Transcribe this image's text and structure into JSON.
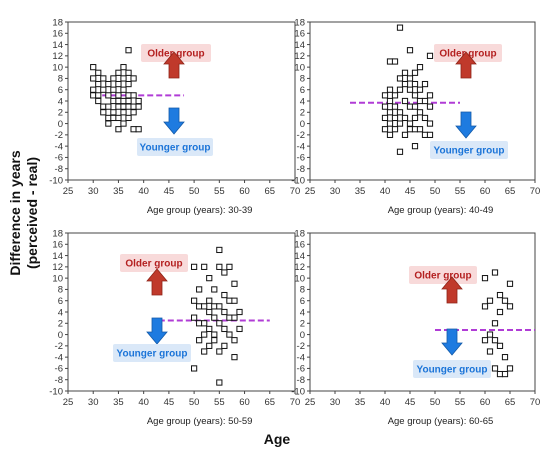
{
  "figure": {
    "ylabel_line1": "Difference in years",
    "ylabel_line2": "(perceived - real)",
    "xlabel": "Age"
  },
  "colors": {
    "older": "#c0392b",
    "younger": "#1e7be0",
    "mean_line": "#b03cd6",
    "older_label_bg": "#f7d6d6",
    "younger_label_bg": "#d6e6f7"
  },
  "chart_data": [
    {
      "type": "scatter",
      "title": "Age group (years): 30-39",
      "xlim": [
        25,
        70
      ],
      "ylim": [
        -10,
        18
      ],
      "xticks": [
        25,
        30,
        35,
        40,
        45,
        50,
        55,
        60,
        65,
        70
      ],
      "yticks": [
        -10,
        -8,
        -6,
        -4,
        -2,
        0,
        2,
        4,
        6,
        8,
        10,
        12,
        14,
        16,
        18
      ],
      "mean_line": {
        "y": 5.0,
        "x": [
          30,
          48
        ]
      },
      "older_label": "Older group",
      "younger_label": "Younger group",
      "points": [
        [
          30,
          10
        ],
        [
          30,
          8
        ],
        [
          30,
          6
        ],
        [
          30,
          5
        ],
        [
          31,
          9
        ],
        [
          31,
          7
        ],
        [
          31,
          5
        ],
        [
          31,
          4
        ],
        [
          32,
          8
        ],
        [
          32,
          6
        ],
        [
          32,
          3
        ],
        [
          32,
          2
        ],
        [
          33,
          7
        ],
        [
          33,
          5
        ],
        [
          33,
          3
        ],
        [
          33,
          1
        ],
        [
          33,
          0
        ],
        [
          34,
          8
        ],
        [
          34,
          6
        ],
        [
          34,
          4
        ],
        [
          34,
          2
        ],
        [
          34,
          1
        ],
        [
          35,
          9
        ],
        [
          35,
          7
        ],
        [
          35,
          5
        ],
        [
          35,
          4
        ],
        [
          35,
          3
        ],
        [
          35,
          1
        ],
        [
          35,
          -1
        ],
        [
          36,
          10
        ],
        [
          36,
          8
        ],
        [
          36,
          6
        ],
        [
          36,
          4
        ],
        [
          36,
          3
        ],
        [
          36,
          2
        ],
        [
          36,
          0
        ],
        [
          37,
          13
        ],
        [
          37,
          9
        ],
        [
          37,
          7
        ],
        [
          37,
          5
        ],
        [
          37,
          4
        ],
        [
          37,
          3
        ],
        [
          37,
          1
        ],
        [
          38,
          8
        ],
        [
          38,
          5
        ],
        [
          38,
          3
        ],
        [
          38,
          2
        ],
        [
          38,
          -1
        ],
        [
          39,
          4
        ],
        [
          39,
          3
        ],
        [
          39,
          -1
        ]
      ]
    },
    {
      "type": "scatter",
      "title": "Age group (years): 40-49",
      "xlim": [
        25,
        70
      ],
      "ylim": [
        -10,
        18
      ],
      "xticks": [
        25,
        30,
        35,
        40,
        45,
        50,
        55,
        60,
        65,
        70
      ],
      "yticks": [
        -10,
        -8,
        -6,
        -4,
        -2,
        0,
        2,
        4,
        6,
        8,
        10,
        12,
        14,
        16,
        18
      ],
      "mean_line": {
        "y": 3.7,
        "x": [
          33,
          55
        ]
      },
      "older_label": "Older group",
      "younger_label": "Younger group",
      "points": [
        [
          40,
          5
        ],
        [
          40,
          3
        ],
        [
          40,
          1
        ],
        [
          40,
          -1
        ],
        [
          41,
          11
        ],
        [
          41,
          6
        ],
        [
          41,
          4
        ],
        [
          41,
          2
        ],
        [
          41,
          0
        ],
        [
          41,
          -2
        ],
        [
          42,
          11
        ],
        [
          42,
          5
        ],
        [
          42,
          3
        ],
        [
          42,
          1
        ],
        [
          42,
          -1
        ],
        [
          43,
          17
        ],
        [
          43,
          8
        ],
        [
          43,
          6
        ],
        [
          43,
          2
        ],
        [
          43,
          0
        ],
        [
          43,
          -5
        ],
        [
          44,
          9
        ],
        [
          44,
          7
        ],
        [
          44,
          4
        ],
        [
          44,
          1
        ],
        [
          44,
          -2
        ],
        [
          45,
          13
        ],
        [
          45,
          8
        ],
        [
          45,
          6
        ],
        [
          45,
          3
        ],
        [
          45,
          0
        ],
        [
          45,
          -1
        ],
        [
          46,
          9
        ],
        [
          46,
          7
        ],
        [
          46,
          5
        ],
        [
          46,
          3
        ],
        [
          46,
          1
        ],
        [
          46,
          -1
        ],
        [
          46,
          -4
        ],
        [
          47,
          10
        ],
        [
          47,
          6
        ],
        [
          47,
          4
        ],
        [
          47,
          2
        ],
        [
          47,
          -1
        ],
        [
          48,
          7
        ],
        [
          48,
          4
        ],
        [
          48,
          1
        ],
        [
          48,
          -2
        ],
        [
          49,
          12
        ],
        [
          49,
          5
        ],
        [
          49,
          3
        ],
        [
          49,
          0
        ],
        [
          49,
          -2
        ]
      ]
    },
    {
      "type": "scatter",
      "title": "Age group (years): 50-59",
      "xlim": [
        25,
        70
      ],
      "ylim": [
        -10,
        18
      ],
      "xticks": [
        25,
        30,
        35,
        40,
        45,
        50,
        55,
        60,
        65,
        70
      ],
      "yticks": [
        -10,
        -8,
        -6,
        -4,
        -2,
        0,
        2,
        4,
        6,
        8,
        10,
        12,
        14,
        16,
        18
      ],
      "mean_line": {
        "y": 2.5,
        "x": [
          43,
          65
        ]
      },
      "older_label": "Older group",
      "younger_label": "Younger group",
      "points": [
        [
          50,
          12
        ],
        [
          50,
          6
        ],
        [
          50,
          3
        ],
        [
          50,
          -6
        ],
        [
          51,
          8
        ],
        [
          51,
          5
        ],
        [
          51,
          2
        ],
        [
          51,
          -1
        ],
        [
          52,
          12
        ],
        [
          52,
          5
        ],
        [
          52,
          2
        ],
        [
          52,
          0
        ],
        [
          52,
          -3
        ],
        [
          53,
          10
        ],
        [
          53,
          6
        ],
        [
          53,
          4
        ],
        [
          53,
          1
        ],
        [
          53,
          -2
        ],
        [
          54,
          8
        ],
        [
          54,
          5
        ],
        [
          54,
          3
        ],
        [
          54,
          0
        ],
        [
          54,
          -1
        ],
        [
          55,
          15
        ],
        [
          55,
          12
        ],
        [
          55,
          5
        ],
        [
          55,
          2
        ],
        [
          55,
          -3
        ],
        [
          55,
          -8.5
        ],
        [
          56,
          11
        ],
        [
          56,
          7
        ],
        [
          56,
          4
        ],
        [
          56,
          1
        ],
        [
          56,
          -2
        ],
        [
          57,
          12
        ],
        [
          57,
          6
        ],
        [
          57,
          3
        ],
        [
          57,
          0
        ],
        [
          58,
          9
        ],
        [
          58,
          6
        ],
        [
          58,
          3
        ],
        [
          58,
          -1
        ],
        [
          58,
          -4
        ],
        [
          59,
          4
        ],
        [
          59,
          1
        ]
      ]
    },
    {
      "type": "scatter",
      "title": "Age group (years): 60-65",
      "xlim": [
        25,
        70
      ],
      "ylim": [
        -10,
        18
      ],
      "xticks": [
        25,
        30,
        35,
        40,
        45,
        50,
        55,
        60,
        65,
        70
      ],
      "yticks": [
        -10,
        -8,
        -6,
        -4,
        -2,
        0,
        2,
        4,
        6,
        8,
        10,
        12,
        14,
        16,
        18
      ],
      "mean_line": {
        "y": 0.8,
        "x": [
          50,
          70
        ]
      },
      "older_label": "Older group",
      "younger_label": "Younger group",
      "points": [
        [
          60,
          10
        ],
        [
          60,
          5
        ],
        [
          60,
          -1
        ],
        [
          61,
          6
        ],
        [
          61,
          0
        ],
        [
          61,
          -3
        ],
        [
          62,
          11
        ],
        [
          62,
          2
        ],
        [
          62,
          -1
        ],
        [
          62,
          -6
        ],
        [
          63,
          7
        ],
        [
          63,
          4
        ],
        [
          63,
          -2
        ],
        [
          63,
          -7
        ],
        [
          64,
          6
        ],
        [
          64,
          -4
        ],
        [
          64,
          -7
        ],
        [
          65,
          9
        ],
        [
          65,
          5
        ],
        [
          65,
          -6
        ]
      ]
    }
  ]
}
